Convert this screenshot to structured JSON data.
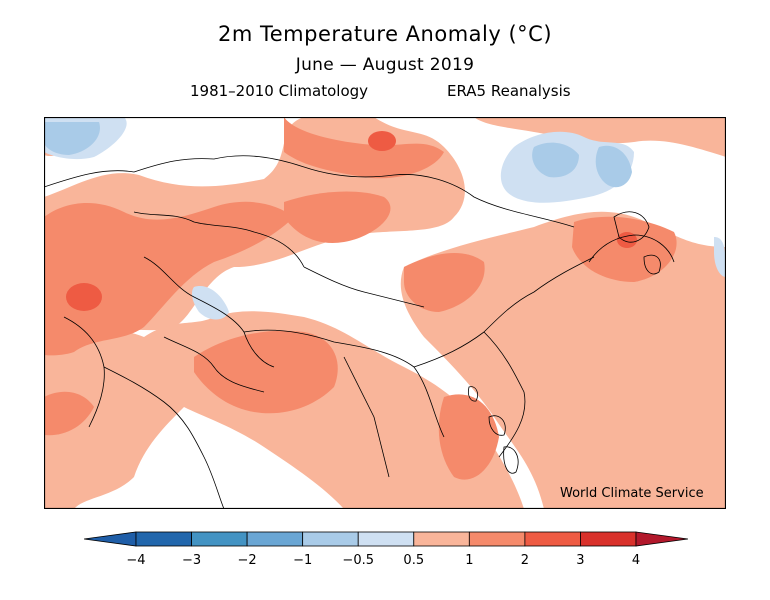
{
  "header": {
    "title": "2m Temperature Anomaly (°C)",
    "subtitle": "June — August 2019",
    "climatology": "1981–2010 Climatology",
    "source": "ERA5 Reanalysis"
  },
  "map": {
    "region": "Asia",
    "credit": "World Climate Service"
  },
  "legend": {
    "levels": [
      {
        "label": "−4",
        "color": "#2166ac"
      },
      {
        "label": "−3",
        "color": "#4393c3"
      },
      {
        "label": "−2",
        "color": "#6aa6d4"
      },
      {
        "label": "−1",
        "color": "#a9cbe8"
      },
      {
        "label": "−0.5",
        "color": "#cfe0f2"
      },
      {
        "label": "0.5",
        "color": "#ffffff"
      },
      {
        "label": "1",
        "color": "#f9b59a"
      },
      {
        "label": "2",
        "color": "#f58a6b"
      },
      {
        "label": "3",
        "color": "#ee5b43"
      },
      {
        "label": "4",
        "color": "#d9312b"
      }
    ],
    "under_color": "#1f5ea8",
    "over_color": "#b2182b"
  }
}
